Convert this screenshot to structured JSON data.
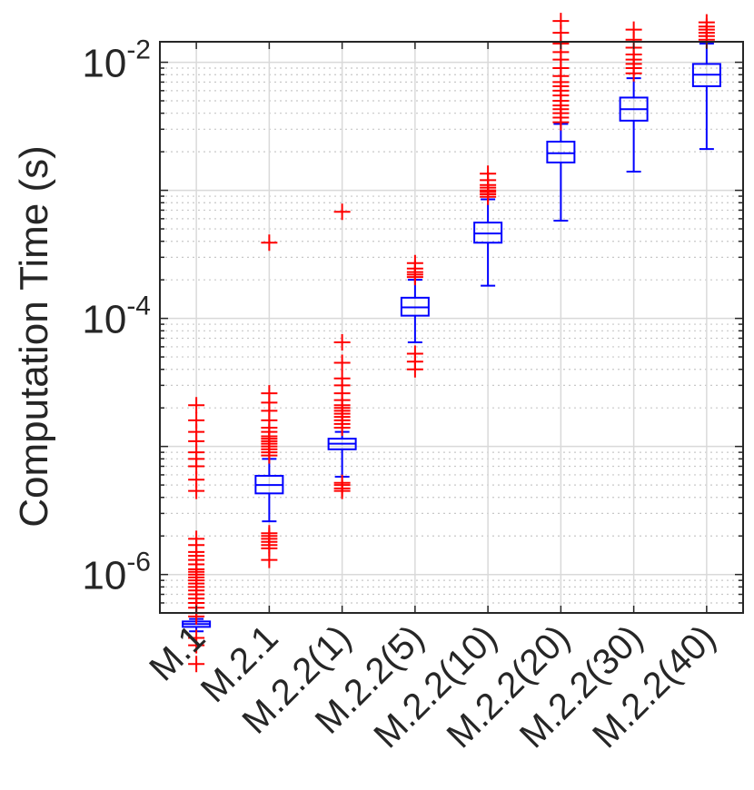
{
  "chart_data": {
    "type": "box",
    "title": "",
    "xlabel": "",
    "ylabel": "Computation Time (s)",
    "yscale": "log",
    "ylim_exp": [
      -6.3,
      -1.84
    ],
    "yticks": [
      {
        "base": "10",
        "exp": "-6",
        "value": -6
      },
      {
        "base": "10",
        "exp": "-4",
        "value": -4
      },
      {
        "base": "10",
        "exp": "-2",
        "value": -2
      }
    ],
    "grid": "major and minor",
    "colors": {
      "box": "#0000ff",
      "outlier": "#ff0000",
      "grid_major": "#d9d9d9",
      "grid_minor": "#c8c8c8",
      "axis": "#262626"
    },
    "categories": [
      "M.1",
      "M.2.1",
      "M.2.2(1)",
      "M.2.2(5)",
      "M.2.2(10)",
      "M.2.2(20)",
      "M.2.2(30)",
      "M.2.2(40)"
    ],
    "boxes": [
      {
        "whisker_low": 3.6e-07,
        "q1": 3.9e-07,
        "median": 4.1e-07,
        "q3": 4.3e-07,
        "whisker_high": 4.5e-07,
        "outliers": [
          2e-07,
          2.8e-07,
          3.2e-07,
          4.7e-07,
          5e-07,
          5.5e-07,
          6e-07,
          6.5e-07,
          7e-07,
          7.5e-07,
          8e-07,
          8.5e-07,
          9e-07,
          9.5e-07,
          1e-06,
          1.05e-06,
          1.1e-06,
          1.2e-06,
          1.3e-06,
          1.4e-06,
          1.5e-06,
          1.7e-06,
          1.9e-06,
          4.5e-06,
          5.5e-06,
          7e-06,
          8e-06,
          9e-06,
          1.1e-05,
          1.3e-05,
          1.6e-05,
          2.1e-05
        ]
      },
      {
        "whisker_low": 2.6e-06,
        "q1": 4.3e-06,
        "median": 5e-06,
        "q3": 5.9e-06,
        "whisker_high": 8e-06,
        "outliers": [
          1.3e-06,
          1.6e-06,
          1.7e-06,
          1.8e-06,
          1.9e-06,
          2e-06,
          2.1e-06,
          8.5e-06,
          9e-06,
          9.5e-06,
          1e-05,
          1.05e-05,
          1.1e-05,
          1.15e-05,
          1.2e-05,
          1.3e-05,
          1.4e-05,
          1.6e-05,
          1.9e-05,
          2.2e-05,
          2.6e-05,
          0.00039
        ]
      },
      {
        "whisker_low": 5.8e-06,
        "q1": 9.5e-06,
        "median": 1.05e-05,
        "q3": 1.15e-05,
        "whisker_high": 1.3e-05,
        "outliers": [
          4.5e-06,
          4.7e-06,
          5e-06,
          5.2e-06,
          1.4e-05,
          1.5e-05,
          1.6e-05,
          1.7e-05,
          1.8e-05,
          1.9e-05,
          2e-05,
          2.1e-05,
          2.3e-05,
          2.6e-05,
          3e-05,
          3.4e-05,
          4.5e-05,
          6.5e-05,
          0.00068
        ]
      },
      {
        "whisker_low": 6.5e-05,
        "q1": 0.000105,
        "median": 0.000122,
        "q3": 0.000145,
        "whisker_high": 0.0002,
        "outliers": [
          4e-05,
          4.6e-05,
          5.3e-05,
          0.00021,
          0.00022,
          0.00023,
          0.000245,
          0.00027
        ]
      },
      {
        "whisker_low": 0.00018,
        "q1": 0.00039,
        "median": 0.00046,
        "q3": 0.00056,
        "whisker_high": 0.00085,
        "outliers": [
          0.00089,
          0.00093,
          0.00097,
          0.001,
          0.00105,
          0.0011,
          0.0012,
          0.00135
        ]
      },
      {
        "whisker_low": 0.00058,
        "q1": 0.00165,
        "median": 0.00195,
        "q3": 0.0024,
        "whisker_high": 0.0033,
        "outliers": [
          0.0034,
          0.0037,
          0.004,
          0.0043,
          0.0046,
          0.005,
          0.0055,
          0.006,
          0.0065,
          0.007,
          0.0078,
          0.009,
          0.0105,
          0.012,
          0.014,
          0.017,
          0.021
        ]
      },
      {
        "whisker_low": 0.0014,
        "q1": 0.0035,
        "median": 0.0043,
        "q3": 0.0053,
        "whisker_high": 0.0075,
        "outliers": [
          0.0082,
          0.009,
          0.0097,
          0.0105,
          0.0115,
          0.013,
          0.015,
          0.018
        ]
      },
      {
        "whisker_low": 0.0021,
        "q1": 0.0065,
        "median": 0.008,
        "q3": 0.0097,
        "whisker_high": 0.014,
        "outliers": [
          0.015,
          0.016,
          0.017,
          0.018,
          0.019,
          0.0205
        ]
      }
    ]
  }
}
